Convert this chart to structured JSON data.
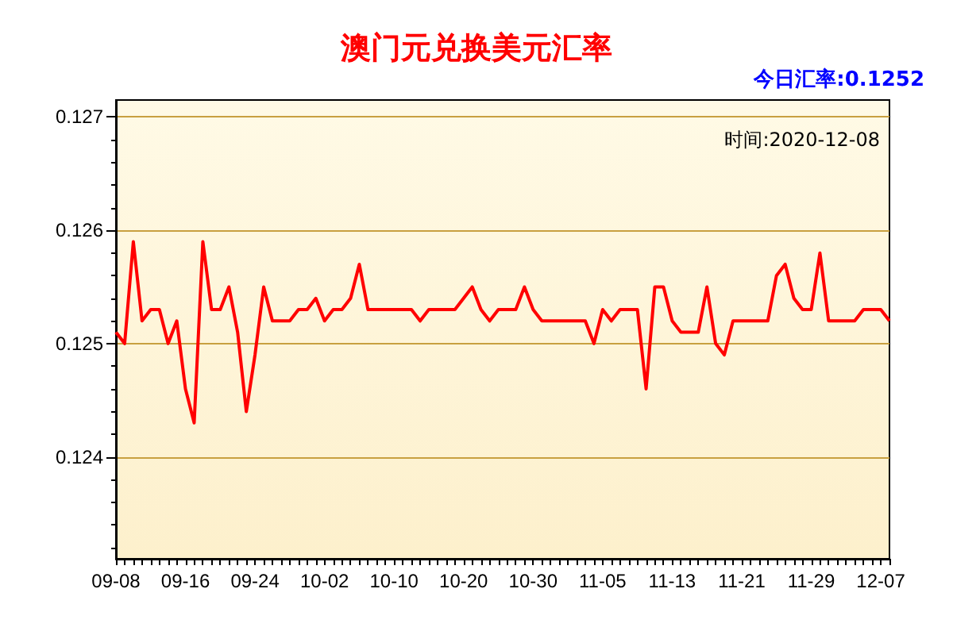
{
  "chart_data": {
    "type": "line",
    "title": "澳门元兑换美元汇率",
    "annotations": [
      "今日汇率:0.1252",
      "时间:2020-12-08"
    ],
    "categories": [
      "09-08",
      null,
      null,
      null,
      null,
      null,
      null,
      null,
      "09-16",
      null,
      null,
      null,
      null,
      null,
      null,
      null,
      "09-24",
      null,
      null,
      null,
      null,
      null,
      null,
      null,
      "10-02",
      null,
      null,
      null,
      null,
      null,
      null,
      null,
      "10-10",
      null,
      null,
      null,
      null,
      null,
      null,
      null,
      "10-20",
      null,
      null,
      null,
      null,
      null,
      null,
      null,
      "10-30",
      null,
      null,
      null,
      null,
      null,
      null,
      null,
      "11-05",
      null,
      null,
      null,
      null,
      null,
      null,
      null,
      "11-13",
      null,
      null,
      null,
      null,
      null,
      null,
      null,
      "11-21",
      null,
      null,
      null,
      null,
      null,
      null,
      null,
      "11-29",
      null,
      null,
      null,
      null,
      null,
      null,
      null,
      "12-07",
      null
    ],
    "series": [
      {
        "color": "#ff0000",
        "values": [
          0.1251,
          0.125,
          0.1259,
          0.1252,
          0.1253,
          0.1253,
          0.125,
          0.1252,
          0.1246,
          0.1243,
          0.1259,
          0.1253,
          0.1253,
          0.1255,
          0.1251,
          0.1244,
          0.1249,
          0.1255,
          0.1252,
          0.1252,
          0.1252,
          0.1253,
          0.1253,
          0.1254,
          0.1252,
          0.1253,
          0.1253,
          0.1254,
          0.1257,
          0.1253,
          0.1253,
          0.1253,
          0.1253,
          0.1253,
          0.1253,
          0.1252,
          0.1253,
          0.1253,
          0.1253,
          0.1253,
          0.1254,
          0.1255,
          0.1253,
          0.1252,
          0.1253,
          0.1253,
          0.1253,
          0.1255,
          0.1253,
          0.1252,
          0.1252,
          0.1252,
          0.1252,
          0.1252,
          0.1252,
          0.125,
          0.1253,
          0.1252,
          0.1253,
          0.1253,
          0.1253,
          0.1246,
          0.1255,
          0.1255,
          0.1252,
          0.1251,
          0.1251,
          0.1251,
          0.1255,
          0.125,
          0.1249,
          0.1252,
          0.1252,
          0.1252,
          0.1252,
          0.1252,
          0.1256,
          0.1257,
          0.1254,
          0.1253,
          0.1253,
          0.1258,
          0.1252,
          0.1252,
          0.1252,
          0.1252,
          0.1253,
          0.1253,
          0.1253,
          0.1252
        ]
      }
    ],
    "ylim": [
      0.1231,
      0.12715
    ],
    "yticks": [
      0.124,
      0.125,
      0.126,
      0.127
    ],
    "grid": "y",
    "marker": "none",
    "line_style": "solid"
  }
}
